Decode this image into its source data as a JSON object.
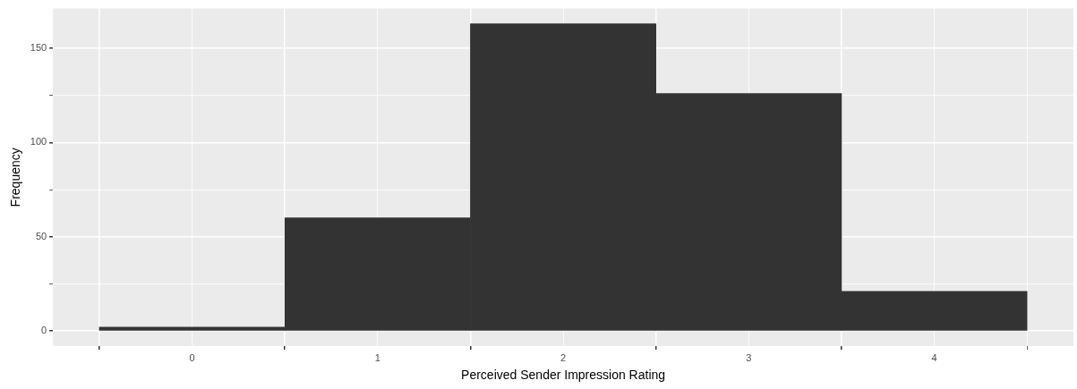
{
  "chart_data": {
    "type": "histogram",
    "xlabel": "Perceived Sender Impression Rating",
    "ylabel": "Frequency",
    "bins": [
      -0.5,
      0.5,
      1.5,
      2.5,
      3.5,
      4.5
    ],
    "values": [
      2,
      60,
      163,
      126,
      21
    ],
    "color": "#333333",
    "xlim": [
      -0.75,
      4.75
    ],
    "xticks": [
      {
        "value": -0.5,
        "label": null
      },
      0,
      {
        "value": 0.5,
        "label": null
      },
      1,
      {
        "value": 1.5,
        "label": null
      },
      2,
      {
        "value": 2.5,
        "label": null
      },
      3,
      {
        "value": 3.5,
        "label": null
      },
      4,
      {
        "value": 4.5,
        "label": null
      }
    ],
    "ylim": [
      -8,
      171
    ],
    "yticks": [
      0,
      {
        "value": 25,
        "label": null
      },
      50,
      {
        "value": 75,
        "label": null
      },
      100,
      {
        "value": 125,
        "label": null
      },
      150
    ],
    "grid": true,
    "legend": false
  }
}
